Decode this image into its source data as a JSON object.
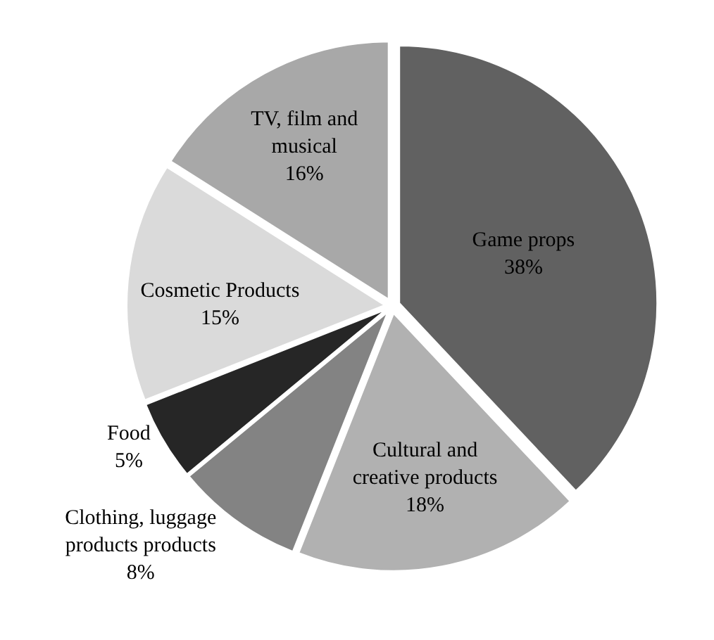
{
  "chart_data": {
    "type": "pie",
    "categories": [
      "Game props",
      "Cultural and creative products",
      "Clothing, luggage products products",
      "Food",
      "Cosmetic Products",
      "TV, film and musical"
    ],
    "values": [
      38,
      18,
      8,
      5,
      15,
      16
    ],
    "value_labels": [
      "38%",
      "18%",
      "8%",
      "5%",
      "15%",
      "16%"
    ],
    "colors": [
      "#616161",
      "#b1b1b1",
      "#838383",
      "#262626",
      "#dadada",
      "#a8a8a8"
    ],
    "legend": false
  }
}
